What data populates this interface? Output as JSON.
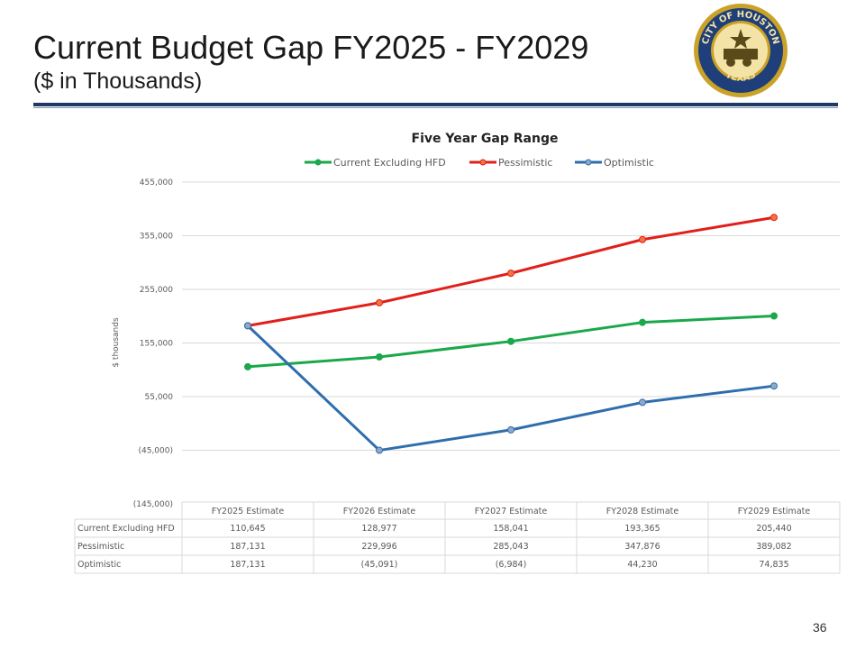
{
  "slide": {
    "title": "Current Budget Gap FY2025 - FY2029",
    "subtitle": "($ in Thousands)",
    "page_number": "36",
    "logo": {
      "text_top": "CITY OF HOUSTON",
      "text_bottom": "TEXAS",
      "colors": {
        "gold": "#c9a227",
        "navy": "#1f3f7a"
      }
    }
  },
  "chart_data": {
    "type": "line",
    "title": "Five Year Gap Range",
    "ylabel": "$ thousands",
    "xlabel": "",
    "categories": [
      "FY2025 Estimate",
      "FY2026 Estimate",
      "FY2027 Estimate",
      "FY2028 Estimate",
      "FY2029 Estimate"
    ],
    "yticks": [
      "455,000",
      "355,000",
      "255,000",
      "155,000",
      "55,000",
      "(45,000)",
      "(145,000)"
    ],
    "ylim": [
      -145000,
      455000
    ],
    "grid": true,
    "legend_position": "top",
    "series": [
      {
        "name": "Current Excluding HFD",
        "color": "#1aa84a",
        "values": [
          110645,
          128977,
          158041,
          193365,
          205440
        ],
        "labels": [
          "110,645",
          "128,977",
          "158,041",
          "193,365",
          "205,440"
        ]
      },
      {
        "name": "Pessimistic",
        "color": "#e0201b",
        "values": [
          187131,
          229996,
          285043,
          347876,
          389082
        ],
        "labels": [
          "187,131",
          "229,996",
          "285,043",
          "347,876",
          "389,082"
        ]
      },
      {
        "name": "Optimistic",
        "color": "#2e6ead",
        "values": [
          187131,
          -45091,
          -6984,
          44230,
          74835
        ],
        "labels": [
          "187,131",
          "(45,091)",
          "(6,984)",
          "44,230",
          "74,835"
        ]
      }
    ]
  }
}
